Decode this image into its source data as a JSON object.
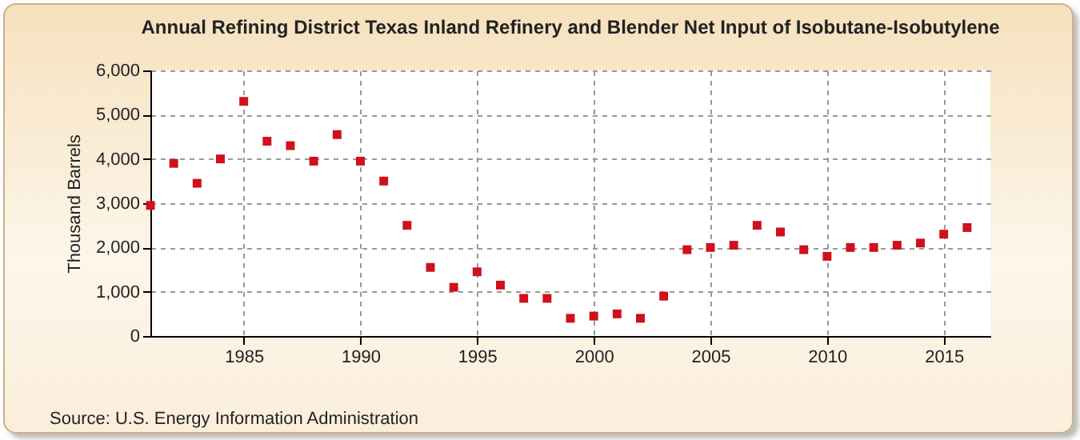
{
  "chart_data": {
    "type": "scatter",
    "title": "Annual Refining District Texas Inland Refinery and Blender Net Input of Isobutane-Isobutylene",
    "ylabel": "Thousand Barrels",
    "annotations": [
      "Source: U.S. Energy Information Administration"
    ],
    "x": [
      1981,
      1982,
      1983,
      1984,
      1985,
      1986,
      1987,
      1988,
      1989,
      1990,
      1991,
      1992,
      1993,
      1994,
      1995,
      1996,
      1997,
      1998,
      1999,
      2000,
      2001,
      2002,
      2003,
      2004,
      2005,
      2006,
      2007,
      2008,
      2009,
      2010,
      2011,
      2012,
      2013,
      2014,
      2015,
      2016
    ],
    "series": [
      {
        "color": "#d0101c",
        "values": [
          2950,
          3900,
          3450,
          4000,
          5300,
          4400,
          4300,
          3950,
          4550,
          3950,
          3500,
          2500,
          1550,
          1100,
          1450,
          1150,
          850,
          850,
          400,
          450,
          500,
          400,
          900,
          1950,
          2000,
          2050,
          2500,
          2350,
          1950,
          1800,
          2000,
          2000,
          2050,
          2100,
          2300,
          2450
        ]
      }
    ],
    "xlim": [
      1981,
      2017
    ],
    "xticks": [
      1985,
      1990,
      1995,
      2000,
      2005,
      2010,
      2015
    ],
    "ylim": [
      0,
      6000
    ],
    "yticks": [
      0,
      {
        "value": 1000,
        "label": "1,000"
      },
      {
        "value": 2000,
        "label": "2,000"
      },
      {
        "value": 3000,
        "label": "3,000"
      },
      {
        "value": 4000,
        "label": "4,000"
      },
      {
        "value": 5000,
        "label": "5,000"
      },
      {
        "value": 6000,
        "label": "6,000"
      }
    ],
    "grid": true,
    "marker": "square"
  }
}
